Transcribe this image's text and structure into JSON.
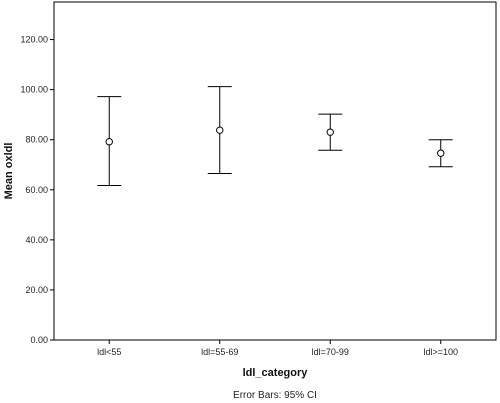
{
  "chart_data": {
    "type": "errorbar",
    "ylabel": "Mean oxldl",
    "xlabel": "ldl_category",
    "footnote": "Error Bars: 95% CI",
    "categories": [
      "ldl<55",
      "ldl=55-69",
      "ldl=70-99",
      "ldl>=100"
    ],
    "mean": [
      79.2,
      83.8,
      83.0,
      74.6
    ],
    "lower": [
      61.7,
      66.5,
      75.8,
      69.2
    ],
    "upper": [
      97.2,
      101.2,
      90.2,
      80.0
    ],
    "ylim": [
      0,
      135
    ],
    "yticks": [
      0,
      20,
      40,
      60,
      80,
      100,
      120
    ],
    "ytick_labels": [
      "0.00",
      "20.00",
      "40.00",
      "60.00",
      "80.00",
      "100.00",
      "120.00"
    ],
    "grid": false,
    "legend": "none"
  }
}
